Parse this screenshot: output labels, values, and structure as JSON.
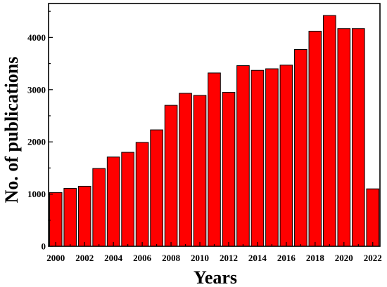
{
  "chart_data": {
    "type": "bar",
    "title": "",
    "xlabel": "Years",
    "ylabel": "No. of publications",
    "categories": [
      "2000",
      "2001",
      "2002",
      "2003",
      "2004",
      "2005",
      "2006",
      "2007",
      "2008",
      "2009",
      "2010",
      "2011",
      "2012",
      "2013",
      "2014",
      "2015",
      "2016",
      "2017",
      "2018",
      "2019",
      "2020",
      "2021",
      "2022"
    ],
    "x_tick_labels": [
      "2000",
      "2002",
      "2004",
      "2006",
      "2008",
      "2010",
      "2012",
      "2014",
      "2016",
      "2018",
      "2020",
      "2022"
    ],
    "y_tick_labels": [
      "0",
      "1000",
      "2000",
      "3000",
      "4000"
    ],
    "y_ticks": [
      0,
      1000,
      2000,
      3000,
      4000
    ],
    "values": [
      1030,
      1110,
      1150,
      1490,
      1710,
      1800,
      1990,
      2230,
      2700,
      2930,
      2890,
      3320,
      2950,
      3460,
      3370,
      3400,
      3470,
      3770,
      4120,
      4420,
      4170,
      4170,
      1100
    ],
    "ylim": [
      0,
      4650
    ],
    "grid": false,
    "bar_color": "#ff0000",
    "edge_color": "#000000"
  }
}
